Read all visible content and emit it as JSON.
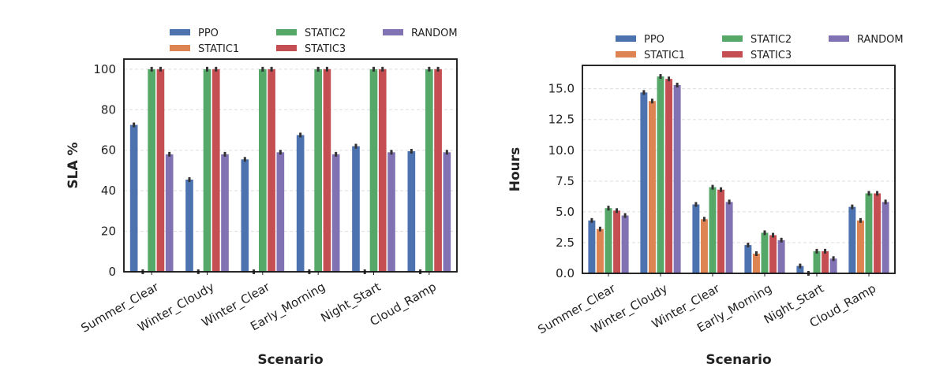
{
  "chart_data": [
    {
      "type": "bar",
      "xlabel": "Scenario",
      "ylabel": "SLA %",
      "ylim": [
        0,
        105
      ],
      "yticks": [
        0,
        20,
        40,
        60,
        80,
        100
      ],
      "ytick_labels": [
        "0",
        "20",
        "40",
        "60",
        "80",
        "100"
      ],
      "grid": true,
      "legend_position": "top",
      "categories": [
        "Summer_Clear",
        "Winter_Cloudy",
        "Winter_Clear",
        "Early_Morning",
        "Night_Start",
        "Cloud_Ramp"
      ],
      "series": [
        {
          "name": "PPO",
          "color": "#4c72b0",
          "values": [
            72.5,
            45.5,
            55.5,
            67.5,
            62,
            59.5
          ]
        },
        {
          "name": "STATIC1",
          "color": "#dd8452",
          "values": [
            0,
            0,
            0,
            0,
            0,
            0
          ]
        },
        {
          "name": "STATIC2",
          "color": "#55a868",
          "values": [
            100,
            100,
            100,
            100,
            100,
            100
          ]
        },
        {
          "name": "STATIC3",
          "color": "#c44e52",
          "values": [
            100,
            100,
            100,
            100,
            100,
            100
          ]
        },
        {
          "name": "RANDOM",
          "color": "#8172b3",
          "values": [
            58,
            58,
            59,
            58,
            59,
            59
          ]
        }
      ]
    },
    {
      "type": "bar",
      "xlabel": "Scenario",
      "ylabel": "Hours",
      "ylim": [
        0,
        16.9
      ],
      "yticks": [
        0,
        2.5,
        5,
        7.5,
        10,
        12.5,
        15
      ],
      "ytick_labels": [
        "0.0",
        "2.5",
        "5.0",
        "7.5",
        "10.0",
        "12.5",
        "15.0"
      ],
      "grid": true,
      "legend_position": "top",
      "categories": [
        "Summer_Clear",
        "Winter_Cloudy",
        "Winter_Clear",
        "Early_Morning",
        "Night_Start",
        "Cloud_Ramp"
      ],
      "series": [
        {
          "name": "PPO",
          "color": "#4c72b0",
          "values": [
            4.3,
            14.7,
            5.6,
            2.3,
            0.6,
            5.4
          ]
        },
        {
          "name": "STATIC1",
          "color": "#dd8452",
          "values": [
            3.6,
            14.0,
            4.4,
            1.6,
            0,
            4.3
          ]
        },
        {
          "name": "STATIC2",
          "color": "#55a868",
          "values": [
            5.3,
            16.0,
            7.0,
            3.3,
            1.8,
            6.5
          ]
        },
        {
          "name": "STATIC3",
          "color": "#c44e52",
          "values": [
            5.1,
            15.8,
            6.8,
            3.1,
            1.8,
            6.5
          ]
        },
        {
          "name": "RANDOM",
          "color": "#8172b3",
          "values": [
            4.7,
            15.3,
            5.8,
            2.7,
            1.2,
            5.8
          ]
        }
      ]
    }
  ]
}
